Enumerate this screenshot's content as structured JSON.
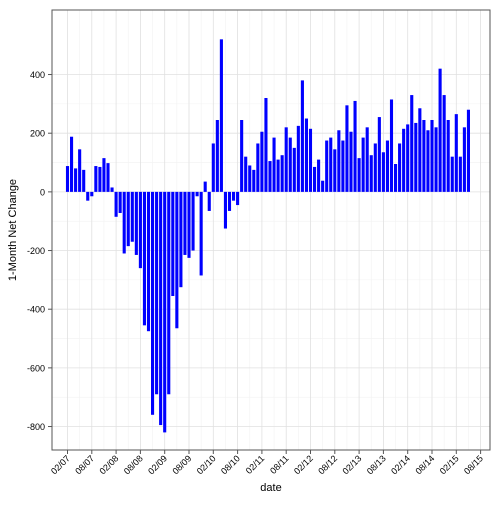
{
  "chart_data": {
    "type": "bar",
    "xlabel": "date",
    "ylabel": "1-Month Net Change",
    "ylim": [
      -880,
      620
    ],
    "y_ticks": [
      -800,
      -600,
      -400,
      -200,
      0,
      200,
      400
    ],
    "grid": true,
    "legend": "none",
    "bar_color": "#0000ff",
    "x_ticks": [
      {
        "label": "02/07",
        "month_index": 1
      },
      {
        "label": "08/07",
        "month_index": 7
      },
      {
        "label": "02/08",
        "month_index": 13
      },
      {
        "label": "08/08",
        "month_index": 19
      },
      {
        "label": "02/09",
        "month_index": 25
      },
      {
        "label": "08/09",
        "month_index": 31
      },
      {
        "label": "02/10",
        "month_index": 37
      },
      {
        "label": "08/10",
        "month_index": 43
      },
      {
        "label": "02/11",
        "month_index": 49
      },
      {
        "label": "08/11",
        "month_index": 55
      },
      {
        "label": "02/12",
        "month_index": 61
      },
      {
        "label": "08/12",
        "month_index": 67
      },
      {
        "label": "02/13",
        "month_index": 73
      },
      {
        "label": "08/13",
        "month_index": 79
      },
      {
        "label": "02/14",
        "month_index": 85
      },
      {
        "label": "08/14",
        "month_index": 91
      },
      {
        "label": "02/15",
        "month_index": 97
      },
      {
        "label": "08/15",
        "month_index": 103
      }
    ],
    "values": [
      88,
      188,
      80,
      145,
      75,
      -30,
      -15,
      88,
      85,
      115,
      98,
      15,
      -85,
      -72,
      -210,
      -185,
      -170,
      -215,
      -260,
      -455,
      -475,
      -760,
      -690,
      -795,
      -820,
      -690,
      -355,
      -465,
      -325,
      -215,
      -225,
      -200,
      -15,
      -285,
      35,
      -65,
      165,
      245,
      520,
      -125,
      -65,
      -30,
      -45,
      245,
      120,
      90,
      75,
      165,
      205,
      320,
      105,
      185,
      110,
      125,
      220,
      185,
      150,
      225,
      380,
      250,
      215,
      85,
      110,
      38,
      175,
      185,
      145,
      210,
      175,
      295,
      205,
      310,
      115,
      185,
      220,
      125,
      165,
      255,
      135,
      175,
      315,
      95,
      165,
      215,
      230,
      330,
      235,
      285,
      245,
      210,
      245,
      220,
      420,
      330,
      245,
      120,
      265,
      120,
      220,
      280
    ]
  }
}
